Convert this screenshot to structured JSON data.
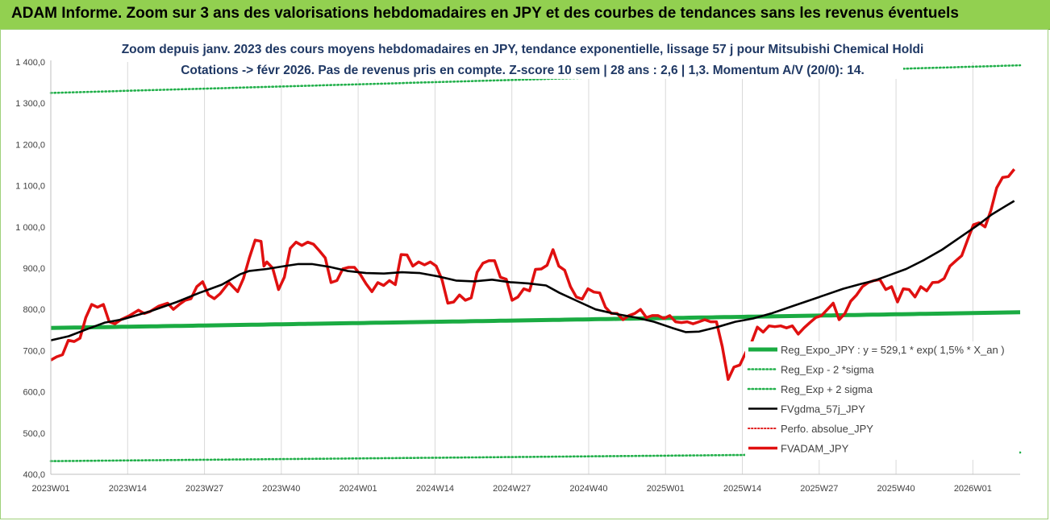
{
  "banner": {
    "title": "ADAM Informe. Zoom sur 3 ans des valorisations hebdomadaires en JPY et des courbes de tendances sans les revenus éventuels"
  },
  "colors": {
    "banner_bg": "#92d050",
    "reg_green": "#1aab42",
    "dotted_green": "#22b04b",
    "price_red": "#e01010",
    "ema_black": "#000000",
    "perf_red": "#e02020",
    "title_blue": "#1f3864"
  },
  "chart_data": {
    "type": "line",
    "title": "Zoom depuis janv. 2023 des cours moyens hebdomadaires en JPY, tendance exponentielle, lissage 57 j pour Mitsubishi Chemical Holdi",
    "subtitle": "Cotations -> févr 2026.  Pas de revenus pris en compte. Z-score 10 sem | 28 ans : 2,6 | 1,3. Momentum A/V (20/0): 14.",
    "xlabel": "",
    "ylabel": "",
    "ylim": [
      400,
      1400
    ],
    "y_ticks": [
      "400,0",
      "500,0",
      "600,0",
      "700,0",
      "800,0",
      "900,0",
      "1 000,0",
      "1 100,0",
      "1 200,0",
      "1 300,0",
      "1 400,0"
    ],
    "x_ticks": [
      "2023W01",
      "2023W14",
      "2023W27",
      "2023W40",
      "2024W01",
      "2024W14",
      "2024W27",
      "2024W40",
      "2025W01",
      "2025W14",
      "2025W27",
      "2025W40",
      "2026W01"
    ],
    "x_tick_index": [
      0,
      13,
      26,
      39,
      52,
      65,
      78,
      91,
      104,
      117,
      130,
      143,
      156
    ],
    "x_count": 164,
    "grid": "vertical",
    "legend_position": "right",
    "legend": [
      "Reg_Expo_JPY : y = 529,1 * exp( 1,5% *   X_an )",
      "Reg_Exp - 2 *sigma",
      "Reg_Exp + 2 sigma",
      "FVgdma_57j_JPY",
      "Perfo. absolue_JPY",
      "FVADAM_JPY"
    ],
    "series": [
      {
        "name": "Reg_Expo_JPY : y = 529,1 * exp( 1,5% *   X_an )",
        "start": 755,
        "end": 793,
        "style": "thick"
      },
      {
        "name": "Reg_Exp - 2 *sigma",
        "start": 432,
        "end": 453,
        "style": "dotted"
      },
      {
        "name": "Reg_Exp + 2 sigma",
        "start": 1325,
        "end": 1392,
        "style": "dotted"
      },
      {
        "name": "FVgdma_57j_JPY",
        "keypoints": [
          [
            0,
            725
          ],
          [
            4,
            735
          ],
          [
            8,
            752
          ],
          [
            12,
            768
          ],
          [
            16,
            776
          ],
          [
            22,
            795
          ],
          [
            28,
            818
          ],
          [
            33,
            840
          ],
          [
            38,
            860
          ],
          [
            42,
            885
          ],
          [
            44,
            893
          ],
          [
            48,
            898
          ],
          [
            52,
            905
          ],
          [
            55,
            910
          ],
          [
            58,
            910
          ],
          [
            62,
            903
          ],
          [
            66,
            893
          ],
          [
            70,
            888
          ],
          [
            74,
            887
          ],
          [
            78,
            890
          ],
          [
            82,
            888
          ],
          [
            86,
            880
          ],
          [
            90,
            870
          ],
          [
            94,
            868
          ],
          [
            98,
            872
          ],
          [
            102,
            866
          ],
          [
            106,
            863
          ],
          [
            110,
            858
          ],
          [
            113,
            840
          ],
          [
            117,
            820
          ],
          [
            121,
            800
          ],
          [
            125,
            790
          ],
          [
            130,
            780
          ],
          [
            134,
            770
          ],
          [
            138,
            755
          ],
          [
            141,
            745
          ],
          [
            144,
            746
          ],
          [
            148,
            757
          ],
          [
            152,
            770
          ],
          [
            156,
            778
          ],
          [
            160,
            790
          ],
          [
            164,
            805
          ],
          [
            168,
            820
          ],
          [
            172,
            835
          ],
          [
            176,
            850
          ],
          [
            180,
            862
          ],
          [
            183,
            870
          ],
          [
            186,
            882
          ],
          [
            190,
            898
          ],
          [
            194,
            920
          ],
          [
            198,
            945
          ],
          [
            202,
            975
          ],
          [
            206,
            1005
          ],
          [
            209,
            1030
          ],
          [
            212,
            1050
          ],
          [
            214,
            1063
          ]
        ]
      },
      {
        "name": "FVADAM_JPY",
        "keypoints": [
          [
            0,
            677
          ],
          [
            2,
            685
          ],
          [
            4,
            690
          ],
          [
            6,
            725
          ],
          [
            8,
            722
          ],
          [
            10,
            730
          ],
          [
            12,
            780
          ],
          [
            14,
            812
          ],
          [
            16,
            805
          ],
          [
            18,
            812
          ],
          [
            20,
            770
          ],
          [
            22,
            765
          ],
          [
            24,
            775
          ],
          [
            27,
            785
          ],
          [
            30,
            798
          ],
          [
            32,
            790
          ],
          [
            34,
            795
          ],
          [
            37,
            808
          ],
          [
            40,
            815
          ],
          [
            42,
            800
          ],
          [
            44,
            812
          ],
          [
            46,
            822
          ],
          [
            48,
            826
          ],
          [
            50,
            855
          ],
          [
            52,
            867
          ],
          [
            54,
            835
          ],
          [
            56,
            826
          ],
          [
            58,
            838
          ],
          [
            61,
            865
          ],
          [
            64,
            843
          ],
          [
            66,
            875
          ],
          [
            68,
            925
          ],
          [
            70,
            968
          ],
          [
            72,
            965
          ],
          [
            73,
            905
          ],
          [
            74,
            915
          ],
          [
            76,
            900
          ],
          [
            78,
            848
          ],
          [
            80,
            878
          ],
          [
            82,
            948
          ],
          [
            84,
            963
          ],
          [
            86,
            955
          ],
          [
            88,
            963
          ],
          [
            90,
            958
          ],
          [
            92,
            942
          ],
          [
            94,
            925
          ],
          [
            96,
            865
          ],
          [
            98,
            870
          ],
          [
            100,
            898
          ],
          [
            102,
            902
          ],
          [
            104,
            902
          ],
          [
            106,
            885
          ],
          [
            108,
            862
          ],
          [
            110,
            843
          ],
          [
            112,
            865
          ],
          [
            114,
            858
          ],
          [
            116,
            870
          ],
          [
            118,
            860
          ],
          [
            120,
            933
          ],
          [
            122,
            932
          ],
          [
            124,
            905
          ],
          [
            126,
            915
          ],
          [
            128,
            908
          ],
          [
            130,
            915
          ],
          [
            132,
            905
          ],
          [
            134,
            872
          ],
          [
            136,
            815
          ],
          [
            138,
            818
          ],
          [
            140,
            835
          ],
          [
            142,
            822
          ],
          [
            144,
            828
          ],
          [
            146,
            890
          ],
          [
            148,
            912
          ],
          [
            150,
            918
          ],
          [
            152,
            918
          ],
          [
            154,
            878
          ],
          [
            156,
            873
          ],
          [
            158,
            822
          ],
          [
            160,
            830
          ],
          [
            162,
            850
          ],
          [
            164,
            845
          ],
          [
            166,
            897
          ],
          [
            168,
            898
          ],
          [
            170,
            907
          ],
          [
            172,
            945
          ],
          [
            174,
            905
          ],
          [
            176,
            895
          ],
          [
            178,
            855
          ],
          [
            180,
            830
          ],
          [
            182,
            825
          ],
          [
            184,
            850
          ],
          [
            186,
            842
          ],
          [
            188,
            840
          ],
          [
            190,
            805
          ],
          [
            192,
            790
          ],
          [
            194,
            790
          ],
          [
            196,
            775
          ],
          [
            198,
            785
          ],
          [
            200,
            790
          ],
          [
            202,
            800
          ],
          [
            204,
            780
          ],
          [
            206,
            785
          ],
          [
            208,
            785
          ],
          [
            210,
            778
          ],
          [
            212,
            785
          ],
          [
            214,
            770
          ],
          [
            216,
            768
          ],
          [
            218,
            770
          ],
          [
            220,
            765
          ],
          [
            222,
            770
          ],
          [
            224,
            775
          ],
          [
            226,
            770
          ],
          [
            228,
            770
          ],
          [
            230,
            710
          ],
          [
            232,
            630
          ],
          [
            234,
            660
          ],
          [
            236,
            665
          ],
          [
            238,
            695
          ],
          [
            240,
            720
          ],
          [
            242,
            757
          ],
          [
            244,
            745
          ],
          [
            246,
            760
          ],
          [
            248,
            758
          ],
          [
            250,
            760
          ],
          [
            252,
            755
          ],
          [
            254,
            760
          ],
          [
            256,
            740
          ],
          [
            258,
            755
          ],
          [
            260,
            768
          ],
          [
            262,
            780
          ],
          [
            264,
            785
          ],
          [
            266,
            800
          ],
          [
            268,
            815
          ],
          [
            270,
            775
          ],
          [
            272,
            790
          ],
          [
            274,
            820
          ],
          [
            276,
            835
          ],
          [
            278,
            855
          ],
          [
            280,
            865
          ],
          [
            282,
            870
          ],
          [
            284,
            872
          ],
          [
            286,
            848
          ],
          [
            288,
            855
          ],
          [
            290,
            818
          ],
          [
            292,
            850
          ],
          [
            294,
            848
          ],
          [
            296,
            830
          ],
          [
            298,
            855
          ],
          [
            300,
            845
          ],
          [
            302,
            865
          ],
          [
            304,
            866
          ],
          [
            306,
            875
          ],
          [
            308,
            905
          ],
          [
            310,
            918
          ],
          [
            312,
            930
          ],
          [
            314,
            968
          ],
          [
            316,
            1005
          ],
          [
            318,
            1010
          ],
          [
            320,
            1000
          ],
          [
            322,
            1040
          ],
          [
            324,
            1095
          ],
          [
            326,
            1120
          ],
          [
            328,
            1122
          ],
          [
            330,
            1140
          ]
        ]
      }
    ]
  }
}
